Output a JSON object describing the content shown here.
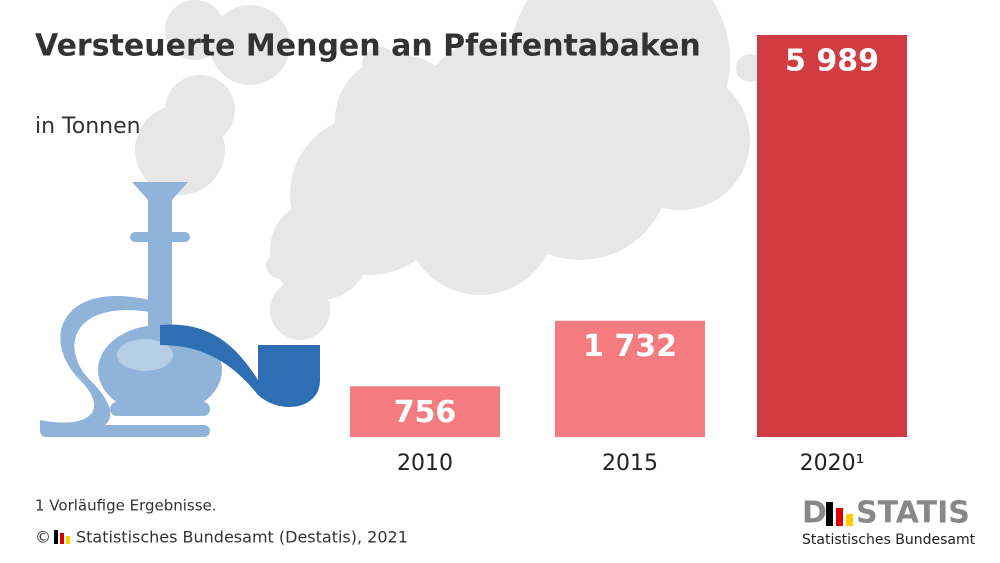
{
  "chart_data": {
    "type": "bar",
    "title": "Versteuerte Mengen an Pfeifentabaken",
    "subtitle": "in Tonnen",
    "categories": [
      "2010",
      "2015",
      "2020¹"
    ],
    "values": [
      756,
      1732,
      5989
    ],
    "value_labels": [
      "756",
      "1 732",
      "5 989"
    ],
    "colors": [
      "#f47c80",
      "#f47c80",
      "#d13c43"
    ],
    "footnote": "1  Vorläufige Ergebnisse.",
    "copyright": "©",
    "source": "Statistisches Bundesamt (Destatis), 2021",
    "logo_left": "D",
    "logo_right": "STATIS",
    "logo_subtitle": "Statistisches Bundesamt"
  }
}
